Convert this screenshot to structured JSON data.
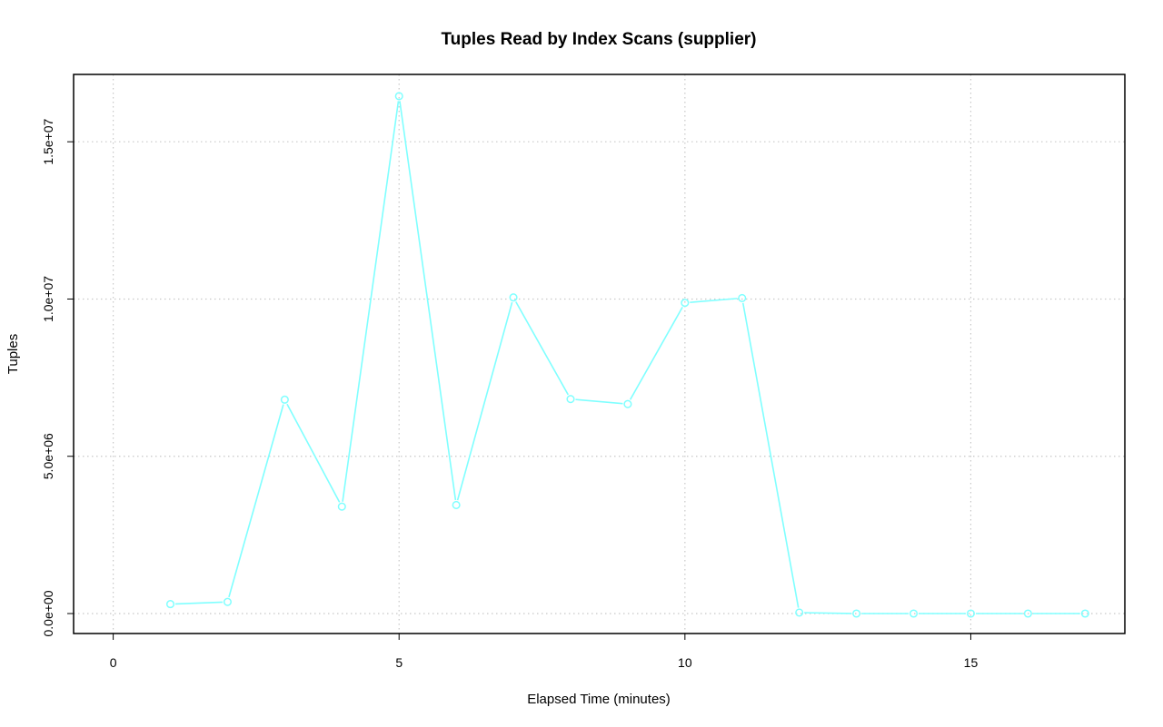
{
  "chart_data": {
    "type": "line",
    "title": "Tuples Read by Index Scans (supplier)",
    "xlabel": "Elapsed Time (minutes)",
    "ylabel": "Tuples",
    "xlim": [
      0,
      17
    ],
    "ylim": [
      0,
      16500000
    ],
    "x_ticks": [
      0,
      5,
      10,
      15
    ],
    "x_tick_labels": [
      "0",
      "5",
      "10",
      "15"
    ],
    "y_ticks": [
      0,
      5000000,
      10000000,
      15000000
    ],
    "y_tick_labels": [
      "0.0e+00",
      "5.0e+06",
      "1.0e+07",
      "1.5e+07"
    ],
    "grid": true,
    "series_color": "#80FFFF",
    "x": [
      1,
      2,
      3,
      4,
      5,
      6,
      7,
      8,
      9,
      10,
      11,
      12,
      13,
      14,
      15,
      16,
      17
    ],
    "y": [
      300000,
      370000,
      6800000,
      3400000,
      16450000,
      3450000,
      10050000,
      6820000,
      6660000,
      9880000,
      10030000,
      30000,
      0,
      0,
      0,
      0,
      0
    ]
  }
}
